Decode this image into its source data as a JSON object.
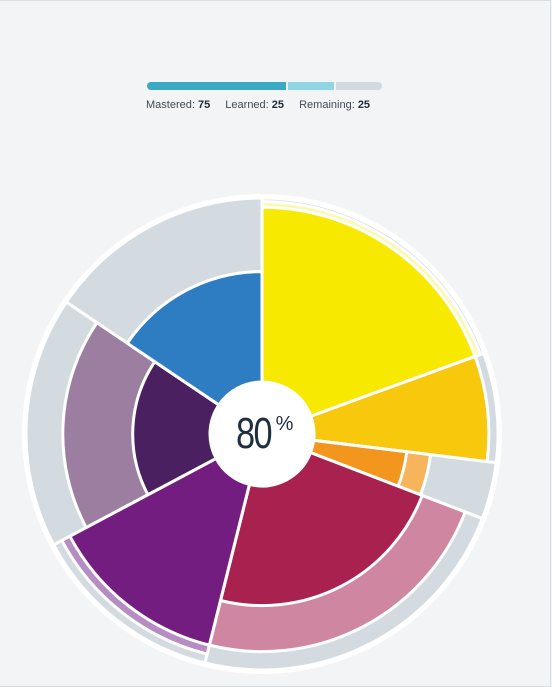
{
  "progress": {
    "mastered_label": "Mastered:",
    "mastered_value": "75",
    "learned_label": "Learned:",
    "learned_value": "25",
    "remaining_label": "Remaining:",
    "remaining_value": "25",
    "mastered_fraction": 0.6,
    "learned_fraction": 0.2,
    "remaining_fraction": 0.2,
    "colors": {
      "mastered": "#3aa9c4",
      "learned": "#8fd5e3",
      "remaining": "#d3d9df"
    }
  },
  "center": {
    "value": "80",
    "unit": "%"
  },
  "wheel": {
    "segments": [
      {
        "name": "yellow",
        "start": 0,
        "end": 70,
        "inner_color": "#f7ea00",
        "outer_color": "#fbf8b0",
        "inner_r": 0.95,
        "outer_r": 0.98
      },
      {
        "name": "gold",
        "start": 70,
        "end": 97,
        "inner_color": "#f7c80c",
        "outer_color": "#f7c80c",
        "inner_r": 0.95,
        "outer_r": 0.95
      },
      {
        "name": "orange",
        "start": 97,
        "end": 111,
        "inner_color": "#f2961e",
        "outer_color": "#f7b45b",
        "inner_r": 0.51,
        "outer_r": 0.64
      },
      {
        "name": "crimson",
        "start": 111,
        "end": 194,
        "inner_color": "#a8214f",
        "outer_color": "#cf86a0",
        "inner_r": 0.65,
        "outer_r": 0.9
      },
      {
        "name": "purple",
        "start": 194,
        "end": 242,
        "inner_color": "#731d80",
        "outer_color": "#b68dc2",
        "inner_r": 0.9,
        "outer_r": 0.95
      },
      {
        "name": "violet",
        "start": 242,
        "end": 304,
        "inner_color": "#4a2060",
        "outer_color": "#9c7fa0",
        "inner_r": 0.42,
        "outer_r": 0.8
      },
      {
        "name": "blue",
        "start": 304,
        "end": 360,
        "inner_color": "#2e7dc2",
        "outer_color": "#d2dbe0",
        "inner_r": 0.6,
        "outer_r": 0.6
      }
    ],
    "track_color": "#d3dbe0"
  }
}
